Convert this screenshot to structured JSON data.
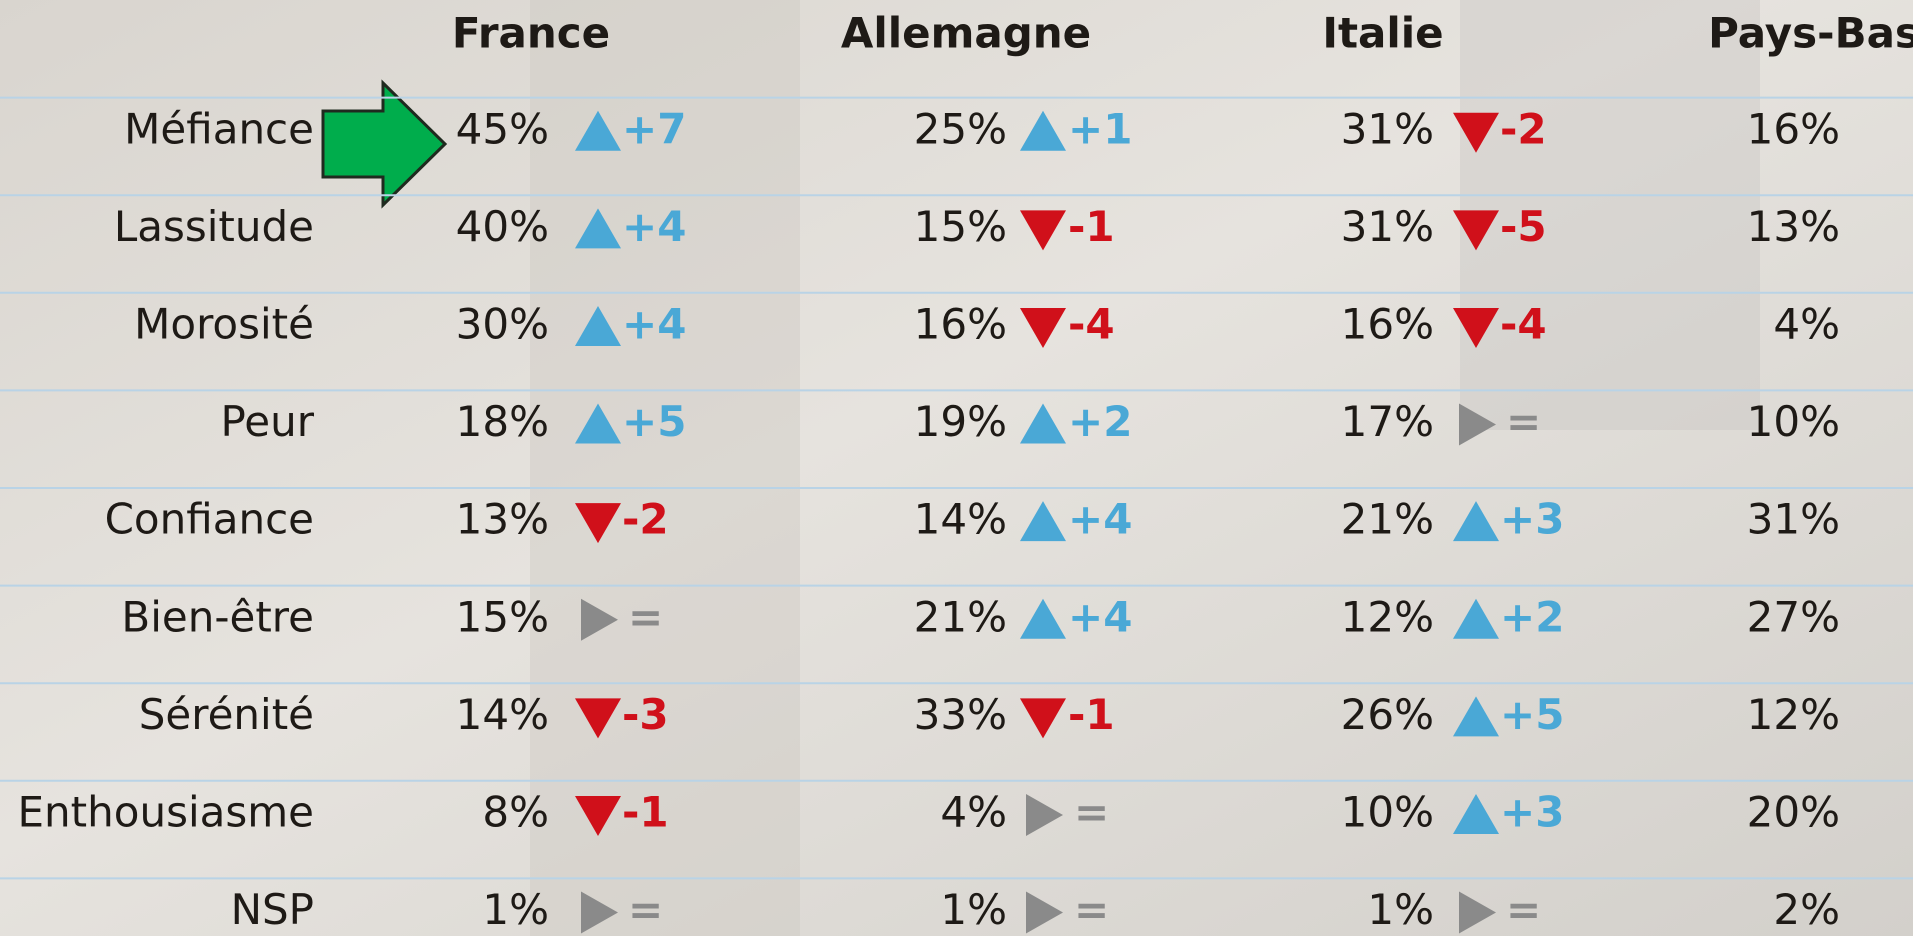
{
  "table": {
    "columns": [
      "France",
      "Allemagne",
      "Italie",
      "Pays-Bas"
    ],
    "rows": [
      {
        "label": "Méfiance",
        "cells": [
          {
            "value": "45%",
            "change": "+7"
          },
          {
            "value": "25%",
            "change": "+1"
          },
          {
            "value": "31%",
            "change": "-2"
          },
          {
            "value": "16%"
          }
        ]
      },
      {
        "label": "Lassitude",
        "cells": [
          {
            "value": "40%",
            "change": "+4"
          },
          {
            "value": "15%",
            "change": "-1"
          },
          {
            "value": "31%",
            "change": "-5"
          },
          {
            "value": "13%"
          }
        ]
      },
      {
        "label": "Morosité",
        "cells": [
          {
            "value": "30%",
            "change": "+4"
          },
          {
            "value": "16%",
            "change": "-4"
          },
          {
            "value": "16%",
            "change": "-4"
          },
          {
            "value": "4%"
          }
        ]
      },
      {
        "label": "Peur",
        "cells": [
          {
            "value": "18%",
            "change": "+5"
          },
          {
            "value": "19%",
            "change": "+2"
          },
          {
            "value": "17%",
            "change": "="
          },
          {
            "value": "10%"
          }
        ]
      },
      {
        "label": "Confiance",
        "cells": [
          {
            "value": "13%",
            "change": "-2"
          },
          {
            "value": "14%",
            "change": "+4"
          },
          {
            "value": "21%",
            "change": "+3"
          },
          {
            "value": "31%"
          }
        ]
      },
      {
        "label": "Bien-être",
        "cells": [
          {
            "value": "15%",
            "change": "="
          },
          {
            "value": "21%",
            "change": "+4"
          },
          {
            "value": "12%",
            "change": "+2"
          },
          {
            "value": "27%"
          }
        ]
      },
      {
        "label": "Sérénité",
        "cells": [
          {
            "value": "14%",
            "change": "-3"
          },
          {
            "value": "33%",
            "change": "-1"
          },
          {
            "value": "26%",
            "change": "+5"
          },
          {
            "value": "12%"
          }
        ]
      },
      {
        "label": "Enthousiasme",
        "cells": [
          {
            "value": "8%",
            "change": "-1"
          },
          {
            "value": "4%",
            "change": "="
          },
          {
            "value": "10%",
            "change": "+3"
          },
          {
            "value": "20%"
          }
        ]
      },
      {
        "label": "NSP",
        "cells": [
          {
            "value": "1%",
            "change": "="
          },
          {
            "value": "1%",
            "change": "="
          },
          {
            "value": "1%",
            "change": "="
          },
          {
            "value": "2%"
          }
        ]
      }
    ]
  }
}
